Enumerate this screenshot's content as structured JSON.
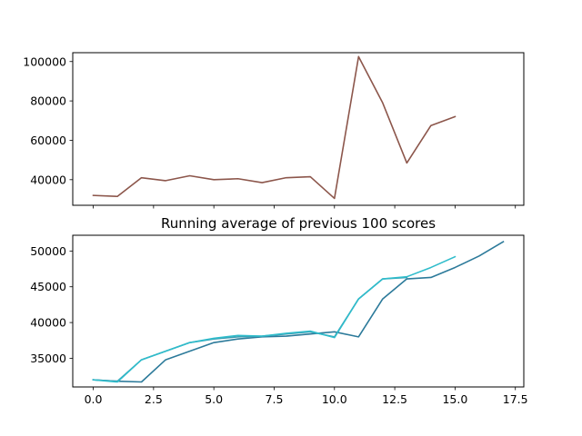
{
  "chart_data": [
    {
      "type": "line",
      "title": "",
      "xlabel": "",
      "ylabel": "",
      "x": [
        0,
        1,
        2,
        3,
        4,
        5,
        6,
        7,
        8,
        9,
        10,
        11,
        12,
        13,
        14,
        15
      ],
      "xlim": [
        -0.85,
        17.85
      ],
      "ylim": [
        27000,
        104500
      ],
      "yticks": [
        40000,
        60000,
        80000,
        100000
      ],
      "ytick_labels": [
        "40000",
        "60000",
        "80000",
        "100000"
      ],
      "xticks": [
        0,
        2.5,
        5,
        7.5,
        10,
        12.5,
        15,
        17.5
      ],
      "show_xtick_labels": false,
      "grid": false,
      "series": [
        {
          "color": "#8c564b",
          "values": [
            32000,
            31500,
            41000,
            39500,
            42000,
            40000,
            40500,
            38500,
            41000,
            41500,
            30500,
            102500,
            79000,
            48500,
            67500,
            72000
          ]
        }
      ]
    },
    {
      "type": "line",
      "title": "Running average of previous 100 scores",
      "xlabel": "",
      "ylabel": "",
      "xlim": [
        -0.85,
        17.85
      ],
      "ylim": [
        31000,
        52200
      ],
      "xticks": [
        0,
        2.5,
        5,
        7.5,
        10,
        12.5,
        15,
        17.5
      ],
      "xtick_labels": [
        "0.0",
        "2.5",
        "5.0",
        "7.5",
        "10.0",
        "12.5",
        "15.0",
        "17.5"
      ],
      "yticks": [
        35000,
        40000,
        45000,
        50000
      ],
      "ytick_labels": [
        "35000",
        "40000",
        "45000",
        "50000"
      ],
      "grid": false,
      "series": [
        {
          "color": "#2c7a9a",
          "x": [
            0,
            1,
            2,
            3,
            4,
            5,
            6,
            7,
            8,
            9,
            10,
            11,
            12,
            13,
            14,
            15,
            16,
            17
          ],
          "values": [
            32000,
            31800,
            31700,
            34800,
            36000,
            37200,
            37700,
            38000,
            38100,
            38400,
            38700,
            38000,
            43300,
            46100,
            46300,
            47700,
            49300,
            51300
          ]
        },
        {
          "color": "#3a9bb0",
          "x": [
            0,
            1,
            2,
            3,
            4,
            5,
            6,
            7,
            8,
            9,
            10,
            11,
            12,
            13
          ],
          "values": [
            32000,
            31800,
            34800,
            36000,
            37200,
            37700,
            38000,
            38100,
            38400,
            38700,
            38000,
            43300,
            46100,
            46300
          ]
        },
        {
          "color": "#2fbccb",
          "x": [
            0,
            1,
            2,
            3,
            4,
            5,
            6,
            7,
            8,
            9,
            10,
            11,
            12,
            13,
            14,
            15
          ],
          "values": [
            32000,
            31700,
            34800,
            36000,
            37200,
            37800,
            38200,
            38100,
            38500,
            38800,
            37900,
            43300,
            46100,
            46400,
            47700,
            49200
          ]
        }
      ]
    }
  ]
}
